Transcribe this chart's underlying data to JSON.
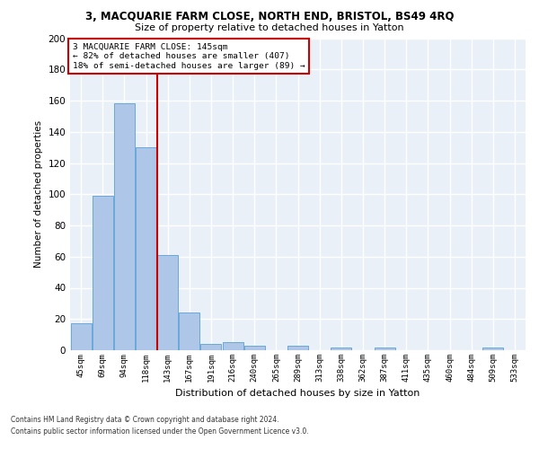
{
  "title": "3, MACQUARIE FARM CLOSE, NORTH END, BRISTOL, BS49 4RQ",
  "subtitle": "Size of property relative to detached houses in Yatton",
  "xlabel": "Distribution of detached houses by size in Yatton",
  "ylabel": "Number of detached properties",
  "bar_color": "#aec6e8",
  "bar_edge_color": "#5a9fd4",
  "categories": [
    "45sqm",
    "69sqm",
    "94sqm",
    "118sqm",
    "143sqm",
    "167sqm",
    "191sqm",
    "216sqm",
    "240sqm",
    "265sqm",
    "289sqm",
    "313sqm",
    "338sqm",
    "362sqm",
    "387sqm",
    "411sqm",
    "435sqm",
    "460sqm",
    "484sqm",
    "509sqm",
    "533sqm"
  ],
  "values": [
    17,
    99,
    158,
    130,
    61,
    24,
    4,
    5,
    3,
    0,
    3,
    0,
    2,
    0,
    2,
    0,
    0,
    0,
    0,
    2,
    0
  ],
  "annotation_line1": "3 MACQUARIE FARM CLOSE: 145sqm",
  "annotation_line2": "← 82% of detached houses are smaller (407)",
  "annotation_line3": "18% of semi-detached houses are larger (89) →",
  "vline_position": 3.5,
  "vline_color": "#cc0000",
  "annotation_box_color": "#cc0000",
  "ylim": [
    0,
    200
  ],
  "yticks": [
    0,
    20,
    40,
    60,
    80,
    100,
    120,
    140,
    160,
    180,
    200
  ],
  "footer_line1": "Contains HM Land Registry data © Crown copyright and database right 2024.",
  "footer_line2": "Contains public sector information licensed under the Open Government Licence v3.0.",
  "background_color": "#eaf0f8",
  "grid_color": "#ffffff",
  "fig_background": "#ffffff"
}
